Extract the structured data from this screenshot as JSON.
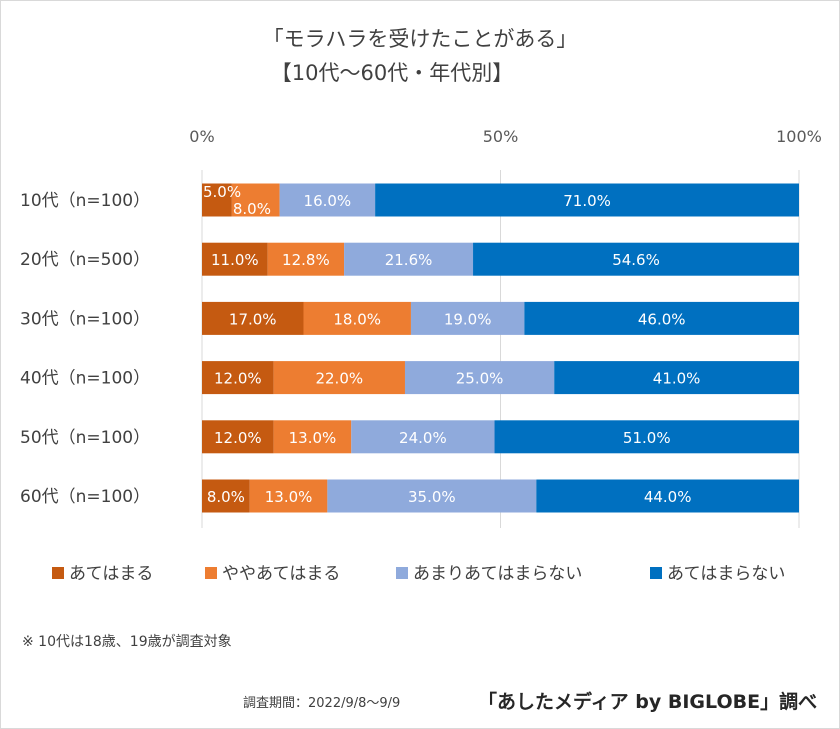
{
  "chart_data": {
    "type": "bar",
    "stacked": true,
    "orientation": "horizontal",
    "title": "「モラハラを受けたことがある」",
    "subtitle": "【10代～60代・年代別】",
    "categories": [
      "10代（n=100）",
      "20代（n=500）",
      "30代（n=100）",
      "40代（n=100）",
      "50代（n=100）",
      "60代（n=100）"
    ],
    "series": [
      {
        "name": "あてはまる",
        "color": "#c55a11",
        "values": [
          5.0,
          11.0,
          17.0,
          12.0,
          12.0,
          8.0
        ]
      },
      {
        "name": "ややあてはまる",
        "color": "#ed7d31",
        "values": [
          8.0,
          12.8,
          18.0,
          22.0,
          13.0,
          13.0
        ]
      },
      {
        "name": "あまりあてはまらない",
        "color": "#8faadc",
        "values": [
          16.0,
          21.6,
          19.0,
          25.0,
          24.0,
          35.0
        ]
      },
      {
        "name": "あてはまらない",
        "color": "#0070c0",
        "values": [
          71.0,
          54.6,
          46.0,
          41.0,
          51.0,
          44.0
        ]
      }
    ],
    "xlim": [
      0,
      100
    ],
    "x_ticks": [
      "0%",
      "50%",
      "100%"
    ],
    "legend_position": "bottom",
    "grid": true
  },
  "footnote": "※ 10代は18歳、19歳が調査対象",
  "survey_period": "調査期間：2022/9/8～9/9",
  "credit": "「あしたメディア by BIGLOBE」調べ"
}
